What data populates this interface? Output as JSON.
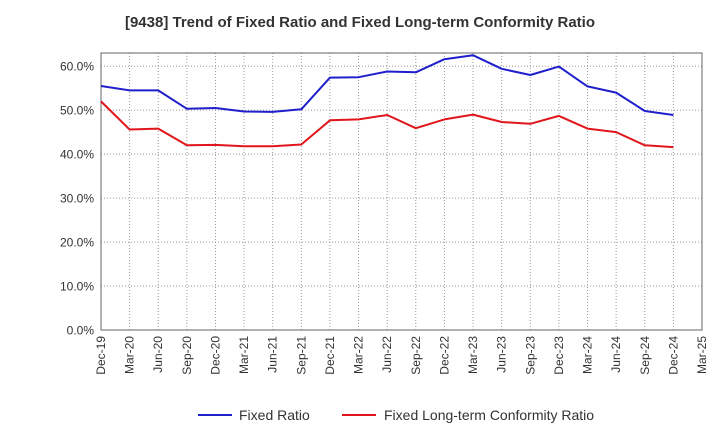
{
  "chart_data": {
    "type": "line",
    "title": "[9438]  Trend of Fixed Ratio and Fixed Long-term Conformity Ratio",
    "xlabel": "",
    "ylabel": "",
    "ylim": [
      0,
      63
    ],
    "y_ticks": [
      0,
      10,
      20,
      30,
      40,
      50,
      60
    ],
    "y_tick_labels": [
      "0.0%",
      "10.0%",
      "20.0%",
      "30.0%",
      "40.0%",
      "50.0%",
      "60.0%"
    ],
    "x_tick_labels": [
      "Dec-19",
      "Mar-20",
      "Jun-20",
      "Sep-20",
      "Dec-20",
      "Mar-21",
      "Jun-21",
      "Sep-21",
      "Dec-21",
      "Mar-22",
      "Jun-22",
      "Sep-22",
      "Dec-22",
      "Mar-23",
      "Jun-23",
      "Sep-23",
      "Dec-23",
      "Mar-24",
      "Jun-24",
      "Sep-24",
      "Dec-24",
      "Mar-25"
    ],
    "categories": [
      "Dec-19",
      "Mar-20",
      "Jun-20",
      "Sep-20",
      "Dec-20",
      "Mar-21",
      "Jun-21",
      "Sep-21",
      "Dec-21",
      "Mar-22",
      "Jun-22",
      "Sep-22",
      "Dec-22",
      "Mar-23",
      "Jun-23",
      "Sep-23",
      "Dec-23",
      "Mar-24",
      "Jun-24",
      "Sep-24",
      "Dec-24"
    ],
    "grid": true,
    "legend": "bottom",
    "series": [
      {
        "name": "Fixed Ratio",
        "color": "#1f1fcc",
        "values": [
          55.5,
          54.5,
          54.5,
          50.3,
          50.5,
          49.7,
          49.6,
          50.2,
          57.4,
          57.5,
          58.8,
          58.6,
          61.6,
          62.5,
          59.4,
          58.0,
          59.9,
          55.4,
          54.0,
          49.8,
          48.9
        ]
      },
      {
        "name": "Fixed Long-term Conformity Ratio",
        "color": "#e0161c",
        "values": [
          52.0,
          45.6,
          45.8,
          42.0,
          42.1,
          41.8,
          41.8,
          42.2,
          47.7,
          47.9,
          48.9,
          45.9,
          47.9,
          49.0,
          47.3,
          46.9,
          48.7,
          45.8,
          45.0,
          42.0,
          41.6
        ]
      }
    ]
  }
}
